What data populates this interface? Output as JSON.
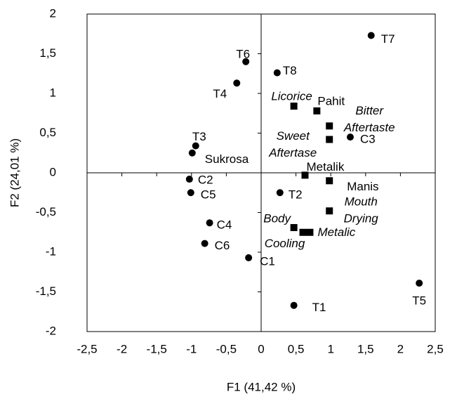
{
  "chart_data": {
    "type": "scatter",
    "xlabel": "F1 (41,42 %)",
    "ylabel": "F2 (24,01 %)",
    "xlim": [
      -2.5,
      2.5
    ],
    "ylim": [
      -2,
      2
    ],
    "xticks": [
      {
        "value": -2.5,
        "label": "-2,5"
      },
      -2,
      {
        "value": -1.5,
        "label": "-1,5"
      },
      -1,
      {
        "value": -0.5,
        "label": "-0,5"
      },
      0,
      {
        "value": 0.5,
        "label": "0,5"
      },
      1,
      {
        "value": 1.5,
        "label": "1,5"
      },
      2,
      {
        "value": 2.5,
        "label": "2,5"
      }
    ],
    "yticks": [
      -2,
      {
        "value": -1.5,
        "label": "-1,5"
      },
      -1,
      {
        "value": -0.5,
        "label": "-0,5"
      },
      0,
      {
        "value": 0.5,
        "label": "0,5"
      },
      1,
      {
        "value": 1.5,
        "label": "1,5"
      },
      2
    ],
    "color": "#000000",
    "points": [
      {
        "label": [
          "T7"
        ],
        "x": 1.58,
        "y": 1.73,
        "marker": "circle"
      },
      {
        "label": [
          "T6"
        ],
        "x": -0.22,
        "y": 1.4,
        "marker": "circle"
      },
      {
        "label": [
          "T8"
        ],
        "x": 0.23,
        "y": 1.26,
        "marker": "circle"
      },
      {
        "label": [
          "T4"
        ],
        "x": -0.35,
        "y": 1.13,
        "marker": "circle"
      },
      {
        "label": [
          "T3"
        ],
        "x": -0.94,
        "y": 0.34,
        "marker": "circle"
      },
      {
        "label": [
          "Sukrosa"
        ],
        "x": -0.99,
        "y": 0.25,
        "marker": "circle"
      },
      {
        "label": [
          "C3"
        ],
        "x": 1.28,
        "y": 0.45,
        "marker": "circle"
      },
      {
        "label": [
          "C2"
        ],
        "x": -1.03,
        "y": -0.08,
        "marker": "circle"
      },
      {
        "label": [
          "C5"
        ],
        "x": -1.01,
        "y": -0.25,
        "marker": "circle"
      },
      {
        "label": [
          "T2"
        ],
        "x": 0.27,
        "y": -0.25,
        "marker": "circle"
      },
      {
        "label": [
          "C4"
        ],
        "x": -0.74,
        "y": -0.63,
        "marker": "circle"
      },
      {
        "label": [
          "C6"
        ],
        "x": -0.81,
        "y": -0.89,
        "marker": "circle"
      },
      {
        "label": [
          "C1"
        ],
        "x": -0.18,
        "y": -1.07,
        "marker": "circle"
      },
      {
        "label": [
          "T1"
        ],
        "x": 0.47,
        "y": -1.67,
        "marker": "circle"
      },
      {
        "label": [
          "T5"
        ],
        "x": 2.27,
        "y": -1.39,
        "marker": "circle"
      },
      {
        "label": [
          "Licorice"
        ],
        "x": 0.47,
        "y": 0.84,
        "marker": "square",
        "italic": true
      },
      {
        "label": [
          "Pahit"
        ],
        "x": 0.8,
        "y": 0.78,
        "marker": "square"
      },
      {
        "label": [
          "Bitter",
          "Aftertaste"
        ],
        "x": 0.98,
        "y": 0.59,
        "marker": "square",
        "italic": true
      },
      {
        "label": [
          "Sweet",
          "Aftertase"
        ],
        "x": 0.98,
        "y": 0.42,
        "marker": "square",
        "italic": true
      },
      {
        "label": [
          "Metalik"
        ],
        "x": 0.63,
        "y": -0.03,
        "marker": "square"
      },
      {
        "label": [
          "Manis"
        ],
        "x": 0.98,
        "y": -0.1,
        "marker": "square"
      },
      {
        "label": [
          "Mouth",
          "Drying"
        ],
        "x": 0.98,
        "y": -0.48,
        "marker": "square",
        "italic": true
      },
      {
        "label": [
          "Body"
        ],
        "x": 0.47,
        "y": -0.69,
        "marker": "square",
        "italic": true
      },
      {
        "label": [
          "Metalic"
        ],
        "x": 0.7,
        "y": -0.75,
        "marker": "square",
        "italic": true
      },
      {
        "label": [
          "Cooling"
        ],
        "x": 0.6,
        "y": -0.75,
        "marker": "square",
        "italic": true
      }
    ]
  }
}
